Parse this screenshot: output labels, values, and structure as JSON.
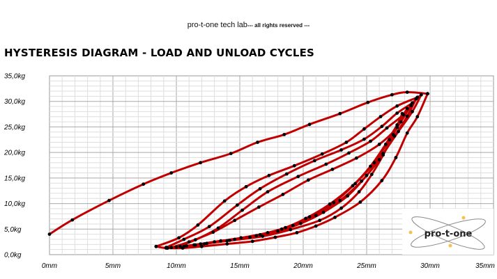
{
  "header": {
    "org": "pro-t-one tech lab",
    "rights": "--- all rights reserved ---"
  },
  "chart_data": {
    "type": "line",
    "title": "HYSTERESIS DIAGRAM - LOAD AND UNLOAD CYCLES",
    "xlabel": "",
    "ylabel": "",
    "xlim": [
      0,
      35
    ],
    "ylim": [
      0,
      35
    ],
    "x_ticks": [
      "0mm",
      "5mm",
      "10mm",
      "15mm",
      "20mm",
      "25mm",
      "30mm",
      "35mm"
    ],
    "y_ticks": [
      "0,0kg",
      "5,0kg",
      "10,0kg",
      "15,0kg",
      "20,0kg",
      "25,0kg",
      "30,0kg",
      "35,0kg"
    ],
    "grid": true,
    "line_color": "#c00000",
    "marker_color": "#000000",
    "series": [
      {
        "x": [
          0,
          1.8,
          4.7,
          7.4,
          9.6,
          11.9,
          14.3,
          16.4,
          18.5,
          20.5,
          22.9,
          25.1,
          27.0,
          28.2,
          29.8
        ],
        "y": [
          4.0,
          6.8,
          10.6,
          13.8,
          16.0,
          18.0,
          19.8,
          22.0,
          23.5,
          25.5,
          27.6,
          29.8,
          31.3,
          31.8,
          31.5
        ]
      },
      {
        "x": [
          29.8,
          29.0,
          28.2,
          27.3,
          26.2,
          24.5,
          22.5,
          21.0,
          19.5,
          17.8,
          16.0,
          14.0,
          12.0,
          10.5,
          9.2,
          8.4
        ],
        "y": [
          31.5,
          27.0,
          23.8,
          19.0,
          14.5,
          10.3,
          7.3,
          5.6,
          4.3,
          3.4,
          2.6,
          2.1,
          1.6,
          1.3,
          1.3,
          1.6
        ]
      },
      {
        "x": [
          8.4,
          10.2,
          11.7,
          13.8,
          15.5,
          17.3,
          19.3,
          21.5,
          23.4,
          24.8,
          26.1,
          27.4,
          29.0,
          29.3
        ],
        "y": [
          1.6,
          3.3,
          5.8,
          10.5,
          13.3,
          15.5,
          17.4,
          19.7,
          22.0,
          24.6,
          27.0,
          29.1,
          30.8,
          31.3
        ]
      },
      {
        "x": [
          29.3,
          28.6,
          27.5,
          26.3,
          25.0,
          23.5,
          21.6,
          19.8,
          18.0,
          15.8,
          13.5,
          11.9,
          10.3,
          9.2
        ],
        "y": [
          31.3,
          28.0,
          24.1,
          19.8,
          15.5,
          11.5,
          8.3,
          6.1,
          4.6,
          3.4,
          2.7,
          2.1,
          1.6,
          1.4
        ]
      },
      {
        "x": [
          9.2,
          10.6,
          12.6,
          14.8,
          16.6,
          18.7,
          20.9,
          23.0,
          24.8,
          26.2,
          27.4,
          28.6,
          28.9
        ],
        "y": [
          1.4,
          3.0,
          5.5,
          9.7,
          12.9,
          15.8,
          18.4,
          20.5,
          22.6,
          25.1,
          27.7,
          29.7,
          30.5
        ]
      },
      {
        "x": [
          28.9,
          28.2,
          27.2,
          26.0,
          24.6,
          22.9,
          21.0,
          19.2,
          17.2,
          15.1,
          13.0,
          11.4,
          10.0
        ],
        "y": [
          30.5,
          27.1,
          23.2,
          18.6,
          14.4,
          10.6,
          7.7,
          5.7,
          4.3,
          3.3,
          2.5,
          1.9,
          1.5
        ]
      },
      {
        "x": [
          10.0,
          11.5,
          13.3,
          15.2,
          17.2,
          19.6,
          21.8,
          23.6,
          25.3,
          26.6,
          27.9,
          28.5
        ],
        "y": [
          1.5,
          2.9,
          5.2,
          8.7,
          12.3,
          15.3,
          17.7,
          19.9,
          22.2,
          24.8,
          27.4,
          29.2
        ]
      },
      {
        "x": [
          28.5,
          27.7,
          26.8,
          25.6,
          24.1,
          22.4,
          20.5,
          18.6,
          16.6,
          14.6,
          12.4,
          10.8,
          9.6
        ],
        "y": [
          29.2,
          26.0,
          22.5,
          18.0,
          13.9,
          10.2,
          7.4,
          5.3,
          3.9,
          3.0,
          2.2,
          1.7,
          1.4
        ]
      },
      {
        "x": [
          9.6,
          11.0,
          12.9,
          14.6,
          16.5,
          18.4,
          20.4,
          22.3,
          24.2,
          26.0,
          27.4,
          28.2
        ],
        "y": [
          1.4,
          2.5,
          4.4,
          6.7,
          9.3,
          11.8,
          14.6,
          16.7,
          18.9,
          21.6,
          24.9,
          28.6
        ]
      },
      {
        "x": [
          28.2,
          27.4,
          26.5,
          25.3,
          23.9,
          22.1,
          20.2,
          18.3,
          16.3,
          14.2,
          12.2,
          10.6,
          9.3
        ],
        "y": [
          28.6,
          25.4,
          21.6,
          17.3,
          13.5,
          9.9,
          7.1,
          5.0,
          3.7,
          2.8,
          2.1,
          1.6,
          1.3
        ]
      },
      {
        "x": [
          9.3,
          11.5,
          14.0,
          16.8,
          19.0,
          21.3,
          23.0,
          24.4,
          25.4,
          26.3,
          27.1,
          27.8
        ],
        "y": [
          1.3,
          1.9,
          2.7,
          3.6,
          4.9,
          6.7,
          9.1,
          12.3,
          15.7,
          19.5,
          23.5,
          27.6
        ]
      }
    ]
  },
  "logo": {
    "text": "pro-t-one"
  }
}
